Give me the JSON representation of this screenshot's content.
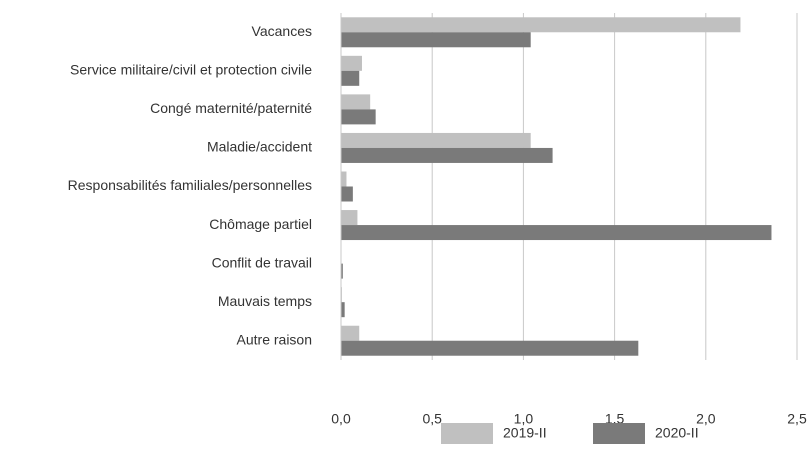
{
  "chart_data": {
    "type": "bar",
    "orientation": "horizontal",
    "categories": [
      "Vacances",
      "Service militaire/civil et protection civile",
      "Congé maternité/paternité",
      "Maladie/accident",
      "Responsabilités familiales/personnelles",
      "Chômage partiel",
      "Conflit de travail",
      "Mauvais temps",
      "Autre raison"
    ],
    "series": [
      {
        "name": "2019-II",
        "color": "#c0c0c0",
        "values": [
          2.19,
          0.115,
          0.16,
          1.04,
          0.03,
          0.09,
          0.0,
          0.005,
          0.1
        ]
      },
      {
        "name": "2020-II",
        "color": "#7a7a7a",
        "values": [
          1.04,
          0.1,
          0.19,
          1.16,
          0.065,
          2.36,
          0.01,
          0.02,
          1.63
        ]
      }
    ],
    "xlim": [
      0,
      2.5
    ],
    "xticks": [
      {
        "value": 0,
        "label": "0,0"
      },
      {
        "value": 0.5,
        "label": "0,5"
      },
      {
        "value": 1,
        "label": "1,0"
      },
      {
        "value": 1.5,
        "label": "1,5"
      },
      {
        "value": 2,
        "label": "2,0"
      },
      {
        "value": 2.5,
        "label": "2,5"
      }
    ],
    "grid": true,
    "legend": "bottom"
  }
}
